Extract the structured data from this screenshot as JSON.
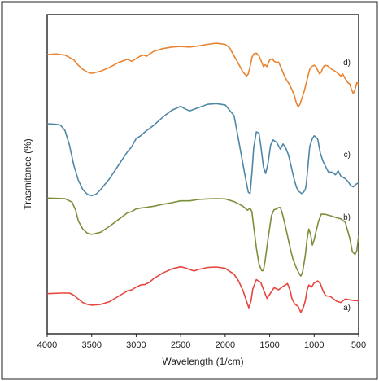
{
  "chart_data": {
    "type": "line",
    "title": "",
    "xlabel": "Wavelength (1/cm)",
    "ylabel": "Trasmitance (%)",
    "xlim": [
      4000,
      500
    ],
    "x_reversed": true,
    "xticks": [
      4000,
      3500,
      3000,
      2500,
      2000,
      1500,
      1000,
      500
    ],
    "yticks_shown": false,
    "grid": false,
    "legend": "inline labels at right end of each curve",
    "series": [
      {
        "name": "a)",
        "color": "#e8453c",
        "points": [
          [
            4000,
            -0.02
          ],
          [
            3850,
            0.0
          ],
          [
            3750,
            0.0
          ],
          [
            3700,
            -0.08
          ],
          [
            3650,
            -0.22
          ],
          [
            3600,
            -0.35
          ],
          [
            3550,
            -0.42
          ],
          [
            3500,
            -0.45
          ],
          [
            3400,
            -0.42
          ],
          [
            3300,
            -0.32
          ],
          [
            3200,
            -0.12
          ],
          [
            3100,
            0.08
          ],
          [
            3050,
            0.12
          ],
          [
            3000,
            0.22
          ],
          [
            2950,
            0.3
          ],
          [
            2900,
            0.32
          ],
          [
            2850,
            0.4
          ],
          [
            2800,
            0.55
          ],
          [
            2700,
            0.75
          ],
          [
            2600,
            0.9
          ],
          [
            2500,
            0.98
          ],
          [
            2450,
            0.94
          ],
          [
            2400,
            0.88
          ],
          [
            2350,
            0.82
          ],
          [
            2300,
            0.88
          ],
          [
            2200,
            0.95
          ],
          [
            2100,
            0.97
          ],
          [
            2000,
            0.92
          ],
          [
            1900,
            0.7
          ],
          [
            1850,
            0.45
          ],
          [
            1800,
            0.1
          ],
          [
            1760,
            -0.3
          ],
          [
            1735,
            -0.55
          ],
          [
            1710,
            -0.3
          ],
          [
            1690,
            0.15
          ],
          [
            1650,
            0.5
          ],
          [
            1600,
            0.4
          ],
          [
            1560,
            0.05
          ],
          [
            1530,
            -0.2
          ],
          [
            1500,
            -0.05
          ],
          [
            1450,
            0.2
          ],
          [
            1400,
            0.12
          ],
          [
            1350,
            0.25
          ],
          [
            1300,
            0.35
          ],
          [
            1270,
            0.1
          ],
          [
            1250,
            -0.2
          ],
          [
            1220,
            -0.4
          ],
          [
            1180,
            -0.5
          ],
          [
            1150,
            -0.72
          ],
          [
            1120,
            -0.52
          ],
          [
            1100,
            -0.3
          ],
          [
            1080,
            0.1
          ],
          [
            1060,
            0.3
          ],
          [
            1030,
            0.22
          ],
          [
            1000,
            0.38
          ],
          [
            960,
            0.45
          ],
          [
            930,
            0.35
          ],
          [
            900,
            0.08
          ],
          [
            870,
            -0.1
          ],
          [
            820,
            -0.12
          ],
          [
            750,
            -0.3
          ],
          [
            700,
            -0.35
          ],
          [
            650,
            -0.22
          ],
          [
            600,
            -0.25
          ],
          [
            550,
            -0.28
          ],
          [
            520,
            -0.28
          ],
          [
            500,
            -0.3
          ]
        ]
      },
      {
        "name": "b)",
        "color": "#7b8f3a",
        "points": [
          [
            4000,
            0.05
          ],
          [
            3800,
            0.03
          ],
          [
            3720,
            -0.1
          ],
          [
            3680,
            -0.4
          ],
          [
            3650,
            -0.8
          ],
          [
            3600,
            -1.1
          ],
          [
            3550,
            -1.25
          ],
          [
            3500,
            -1.3
          ],
          [
            3400,
            -1.22
          ],
          [
            3300,
            -1.0
          ],
          [
            3200,
            -0.75
          ],
          [
            3100,
            -0.5
          ],
          [
            3050,
            -0.45
          ],
          [
            3000,
            -0.35
          ],
          [
            2950,
            -0.32
          ],
          [
            2900,
            -0.3
          ],
          [
            2800,
            -0.25
          ],
          [
            2700,
            -0.18
          ],
          [
            2600,
            -0.12
          ],
          [
            2500,
            -0.05
          ],
          [
            2400,
            -0.05
          ],
          [
            2300,
            0.0
          ],
          [
            2200,
            0.02
          ],
          [
            2100,
            0.03
          ],
          [
            2000,
            0.02
          ],
          [
            1900,
            -0.08
          ],
          [
            1800,
            -0.25
          ],
          [
            1750,
            -0.4
          ],
          [
            1720,
            -0.32
          ],
          [
            1700,
            -0.45
          ],
          [
            1680,
            -1.0
          ],
          [
            1650,
            -1.8
          ],
          [
            1620,
            -2.4
          ],
          [
            1590,
            -2.65
          ],
          [
            1570,
            -2.65
          ],
          [
            1550,
            -2.25
          ],
          [
            1520,
            -1.5
          ],
          [
            1480,
            -0.6
          ],
          [
            1450,
            -0.38
          ],
          [
            1420,
            -0.35
          ],
          [
            1400,
            -0.3
          ],
          [
            1380,
            -0.3
          ],
          [
            1360,
            -0.5
          ],
          [
            1330,
            -0.9
          ],
          [
            1300,
            -1.35
          ],
          [
            1270,
            -1.8
          ],
          [
            1240,
            -2.2
          ],
          [
            1200,
            -2.55
          ],
          [
            1170,
            -2.75
          ],
          [
            1150,
            -2.85
          ],
          [
            1130,
            -2.7
          ],
          [
            1100,
            -2.1
          ],
          [
            1080,
            -1.5
          ],
          [
            1060,
            -1.1
          ],
          [
            1040,
            -1.3
          ],
          [
            1020,
            -1.7
          ],
          [
            1000,
            -1.5
          ],
          [
            980,
            -1.2
          ],
          [
            950,
            -0.8
          ],
          [
            920,
            -0.55
          ],
          [
            880,
            -0.55
          ],
          [
            800,
            -0.62
          ],
          [
            750,
            -0.68
          ],
          [
            700,
            -0.72
          ],
          [
            650,
            -0.85
          ],
          [
            600,
            -1.45
          ],
          [
            570,
            -1.95
          ],
          [
            540,
            -2.05
          ],
          [
            520,
            -1.9
          ],
          [
            500,
            -1.35
          ]
        ]
      },
      {
        "name": "c)",
        "color": "#4f87a6",
        "points": [
          [
            4000,
            0.0
          ],
          [
            3900,
            -0.02
          ],
          [
            3850,
            -0.05
          ],
          [
            3800,
            -0.25
          ],
          [
            3750,
            -0.8
          ],
          [
            3700,
            -1.55
          ],
          [
            3650,
            -2.1
          ],
          [
            3600,
            -2.45
          ],
          [
            3550,
            -2.62
          ],
          [
            3500,
            -2.68
          ],
          [
            3450,
            -2.62
          ],
          [
            3400,
            -2.45
          ],
          [
            3300,
            -2.05
          ],
          [
            3200,
            -1.55
          ],
          [
            3100,
            -1.05
          ],
          [
            3050,
            -0.85
          ],
          [
            3000,
            -0.55
          ],
          [
            2950,
            -0.45
          ],
          [
            2900,
            -0.3
          ],
          [
            2800,
            -0.05
          ],
          [
            2700,
            0.25
          ],
          [
            2600,
            0.5
          ],
          [
            2500,
            0.65
          ],
          [
            2450,
            0.55
          ],
          [
            2400,
            0.48
          ],
          [
            2300,
            0.6
          ],
          [
            2200,
            0.72
          ],
          [
            2100,
            0.75
          ],
          [
            2000,
            0.7
          ],
          [
            1900,
            0.3
          ],
          [
            1850,
            -0.6
          ],
          [
            1800,
            -1.5
          ],
          [
            1770,
            -2.05
          ],
          [
            1740,
            -2.55
          ],
          [
            1720,
            -2.6
          ],
          [
            1700,
            -1.85
          ],
          [
            1680,
            -0.9
          ],
          [
            1650,
            -0.3
          ],
          [
            1620,
            -0.35
          ],
          [
            1600,
            -0.8
          ],
          [
            1570,
            -1.6
          ],
          [
            1545,
            -1.85
          ],
          [
            1520,
            -1.5
          ],
          [
            1490,
            -0.8
          ],
          [
            1460,
            -0.6
          ],
          [
            1420,
            -0.7
          ],
          [
            1380,
            -0.95
          ],
          [
            1350,
            -0.75
          ],
          [
            1320,
            -0.9
          ],
          [
            1290,
            -1.15
          ],
          [
            1260,
            -1.55
          ],
          [
            1230,
            -2.0
          ],
          [
            1200,
            -2.35
          ],
          [
            1180,
            -2.5
          ],
          [
            1160,
            -2.55
          ],
          [
            1140,
            -2.6
          ],
          [
            1120,
            -2.55
          ],
          [
            1100,
            -2.45
          ],
          [
            1090,
            -2.3
          ],
          [
            1070,
            -1.6
          ],
          [
            1050,
            -0.85
          ],
          [
            1020,
            -0.55
          ],
          [
            1000,
            -0.45
          ],
          [
            980,
            -0.5
          ],
          [
            960,
            -0.58
          ],
          [
            930,
            -1.1
          ],
          [
            900,
            -1.4
          ],
          [
            870,
            -1.6
          ],
          [
            840,
            -1.8
          ],
          [
            800,
            -1.8
          ],
          [
            760,
            -1.9
          ],
          [
            730,
            -1.75
          ],
          [
            700,
            -1.95
          ],
          [
            650,
            -2.05
          ],
          [
            620,
            -2.15
          ],
          [
            590,
            -2.3
          ],
          [
            560,
            -2.35
          ],
          [
            530,
            -2.25
          ],
          [
            500,
            -2.2
          ]
        ]
      },
      {
        "name": "d)",
        "color": "#e88330",
        "points": [
          [
            4000,
            0.0
          ],
          [
            3900,
            0.02
          ],
          [
            3800,
            -0.02
          ],
          [
            3700,
            -0.2
          ],
          [
            3650,
            -0.4
          ],
          [
            3600,
            -0.55
          ],
          [
            3550,
            -0.65
          ],
          [
            3500,
            -0.7
          ],
          [
            3400,
            -0.62
          ],
          [
            3300,
            -0.48
          ],
          [
            3200,
            -0.3
          ],
          [
            3100,
            -0.18
          ],
          [
            3050,
            -0.25
          ],
          [
            3000,
            -0.15
          ],
          [
            2950,
            -0.05
          ],
          [
            2920,
            -0.02
          ],
          [
            2880,
            -0.06
          ],
          [
            2850,
            0.02
          ],
          [
            2800,
            0.12
          ],
          [
            2700,
            0.22
          ],
          [
            2600,
            0.28
          ],
          [
            2500,
            0.3
          ],
          [
            2400,
            0.28
          ],
          [
            2300,
            0.32
          ],
          [
            2200,
            0.38
          ],
          [
            2100,
            0.42
          ],
          [
            2000,
            0.38
          ],
          [
            1950,
            0.25
          ],
          [
            1900,
            -0.05
          ],
          [
            1850,
            -0.35
          ],
          [
            1800,
            -0.65
          ],
          [
            1760,
            -0.8
          ],
          [
            1740,
            -0.72
          ],
          [
            1720,
            -0.45
          ],
          [
            1700,
            -0.12
          ],
          [
            1680,
            0.02
          ],
          [
            1650,
            0.05
          ],
          [
            1620,
            -0.05
          ],
          [
            1600,
            -0.2
          ],
          [
            1570,
            -0.45
          ],
          [
            1550,
            -0.38
          ],
          [
            1530,
            -0.45
          ],
          [
            1500,
            -0.2
          ],
          [
            1470,
            -0.15
          ],
          [
            1450,
            -0.25
          ],
          [
            1420,
            -0.3
          ],
          [
            1400,
            -0.28
          ],
          [
            1370,
            -0.5
          ],
          [
            1340,
            -0.75
          ],
          [
            1310,
            -0.95
          ],
          [
            1280,
            -1.1
          ],
          [
            1250,
            -1.3
          ],
          [
            1220,
            -1.55
          ],
          [
            1200,
            -1.8
          ],
          [
            1180,
            -1.95
          ],
          [
            1160,
            -1.85
          ],
          [
            1140,
            -1.65
          ],
          [
            1110,
            -1.35
          ],
          [
            1080,
            -0.95
          ],
          [
            1050,
            -0.55
          ],
          [
            1030,
            -0.45
          ],
          [
            1000,
            -0.4
          ],
          [
            980,
            -0.45
          ],
          [
            960,
            -0.6
          ],
          [
            940,
            -0.72
          ],
          [
            920,
            -0.65
          ],
          [
            900,
            -0.48
          ],
          [
            880,
            -0.4
          ],
          [
            850,
            -0.42
          ],
          [
            800,
            -0.55
          ],
          [
            750,
            -0.65
          ],
          [
            700,
            -0.8
          ],
          [
            680,
            -0.72
          ],
          [
            650,
            -0.9
          ],
          [
            620,
            -1.05
          ],
          [
            600,
            -1.1
          ],
          [
            580,
            -1.3
          ],
          [
            560,
            -1.45
          ],
          [
            540,
            -1.3
          ],
          [
            520,
            -1.05
          ],
          [
            500,
            -1.1
          ]
        ]
      }
    ]
  }
}
